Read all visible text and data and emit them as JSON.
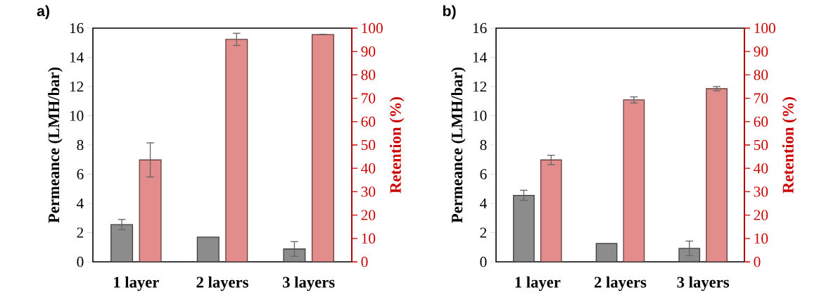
{
  "chart_data": [
    {
      "type": "bar",
      "title": "a)",
      "ylabel": "Permeance (LMH/bar)",
      "y2label": "Retention (%)",
      "categories": [
        "1 layer",
        "2 layers",
        "3 layers"
      ],
      "series": [
        {
          "color": "#8c8c8c",
          "values": [
            2.55,
            1.69,
            0.88
          ],
          "errors": [
            0.35,
            null,
            0.5
          ]
        },
        {
          "color": "#e38c8c",
          "axis": "y2",
          "values": [
            43.6,
            95.2,
            97.3
          ],
          "errors": [
            7.3,
            2.6,
            0.1
          ]
        }
      ],
      "ylim": [
        0,
        16
      ],
      "yticks": [
        0,
        2,
        4,
        6,
        8,
        10,
        12,
        14,
        16
      ],
      "y2lim": [
        0,
        100
      ],
      "y2ticks": [
        0,
        10,
        20,
        30,
        40,
        50,
        60,
        70,
        80,
        90,
        100
      ]
    },
    {
      "type": "bar",
      "title": "b)",
      "ylabel": "Permeance (LMH/bar)",
      "y2label": "Retention (%)",
      "categories": [
        "1 layer",
        "2 layers",
        "3 layers"
      ],
      "series": [
        {
          "color": "#8c8c8c",
          "values": [
            4.55,
            1.26,
            0.92
          ],
          "errors": [
            0.35,
            null,
            0.5
          ]
        },
        {
          "color": "#e38c8c",
          "axis": "y2",
          "values": [
            43.6,
            69.3,
            74.1
          ],
          "errors": [
            2.0,
            1.3,
            0.9
          ]
        }
      ],
      "ylim": [
        0,
        16
      ],
      "yticks": [
        0,
        2,
        4,
        6,
        8,
        10,
        12,
        14,
        16
      ],
      "y2lim": [
        0,
        100
      ],
      "y2ticks": [
        0,
        10,
        20,
        30,
        40,
        50,
        60,
        70,
        80,
        90,
        100
      ]
    }
  ]
}
